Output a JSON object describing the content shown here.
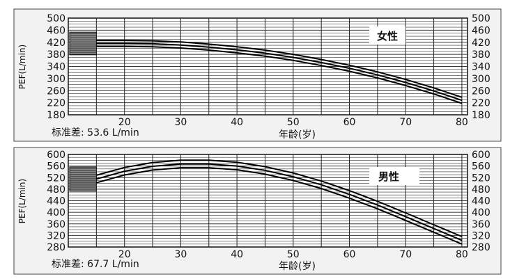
{
  "chart_data": [
    {
      "type": "line",
      "label": "女性",
      "ylabel": "PEF(L/min)",
      "xlabel": "年龄(岁)",
      "note": "标准差: 53.6 L/min",
      "x_ticks": [
        "20",
        "30",
        "40",
        "50",
        "60",
        "70",
        "80"
      ],
      "y_ticks": [
        "180",
        "220",
        "260",
        "300",
        "340",
        "380",
        "420",
        "460",
        "500"
      ],
      "y_ticks_right": [
        "180",
        "220",
        "260",
        "300",
        "340",
        "380",
        "420",
        "460",
        "500"
      ],
      "xlim": [
        10,
        81
      ],
      "ylim": [
        180,
        500
      ],
      "grid": true,
      "series": [
        {
          "x": [
            15,
            20,
            25,
            30,
            35,
            40,
            45,
            50,
            55,
            60,
            65,
            70,
            75,
            80
          ],
          "y": [
            426,
            426,
            425,
            421,
            414,
            405,
            394,
            380,
            363,
            344,
            322,
            297,
            269,
            238
          ]
        },
        {
          "x": [
            15,
            20,
            25,
            30,
            35,
            40,
            45,
            50,
            55,
            60,
            65,
            70,
            75,
            80
          ],
          "y": [
            416,
            416,
            415,
            411,
            404,
            395,
            384,
            370,
            353,
            334,
            312,
            287,
            259,
            228
          ]
        },
        {
          "x": [
            15,
            20,
            25,
            30,
            35,
            40,
            45,
            50,
            55,
            60,
            65,
            70,
            75,
            80
          ],
          "y": [
            406,
            406,
            405,
            401,
            394,
            385,
            374,
            360,
            343,
            324,
            302,
            277,
            249,
            218
          ]
        }
      ]
    },
    {
      "type": "line",
      "label": "男性",
      "ylabel": "PEF(L/min)",
      "xlabel": "年龄(岁)",
      "note": "标准差: 67.7 L/min",
      "x_ticks": [
        "20",
        "30",
        "40",
        "50",
        "60",
        "70",
        "80"
      ],
      "y_ticks": [
        "280",
        "320",
        "360",
        "400",
        "440",
        "480",
        "520",
        "560",
        "600"
      ],
      "y_ticks_right": [
        "280",
        "320",
        "360",
        "400",
        "440",
        "480",
        "520",
        "560",
        "600"
      ],
      "xlim": [
        10,
        81
      ],
      "ylim": [
        280,
        600
      ],
      "grid": true,
      "series": [
        {
          "x": [
            15,
            20,
            25,
            30,
            35,
            40,
            45,
            50,
            55,
            60,
            65,
            70,
            75,
            80
          ],
          "y": [
            528,
            555,
            572,
            580,
            580,
            573,
            558,
            536,
            508,
            475,
            438,
            398,
            357,
            316
          ]
        },
        {
          "x": [
            15,
            20,
            25,
            30,
            35,
            40,
            45,
            50,
            55,
            60,
            65,
            70,
            75,
            80
          ],
          "y": [
            515,
            542,
            559,
            567,
            567,
            560,
            545,
            523,
            495,
            462,
            425,
            385,
            344,
            303
          ]
        },
        {
          "x": [
            15,
            20,
            25,
            30,
            35,
            40,
            45,
            50,
            55,
            60,
            65,
            70,
            75,
            80
          ],
          "y": [
            502,
            529,
            546,
            554,
            554,
            547,
            532,
            510,
            482,
            449,
            412,
            372,
            331,
            290
          ]
        }
      ]
    }
  ]
}
